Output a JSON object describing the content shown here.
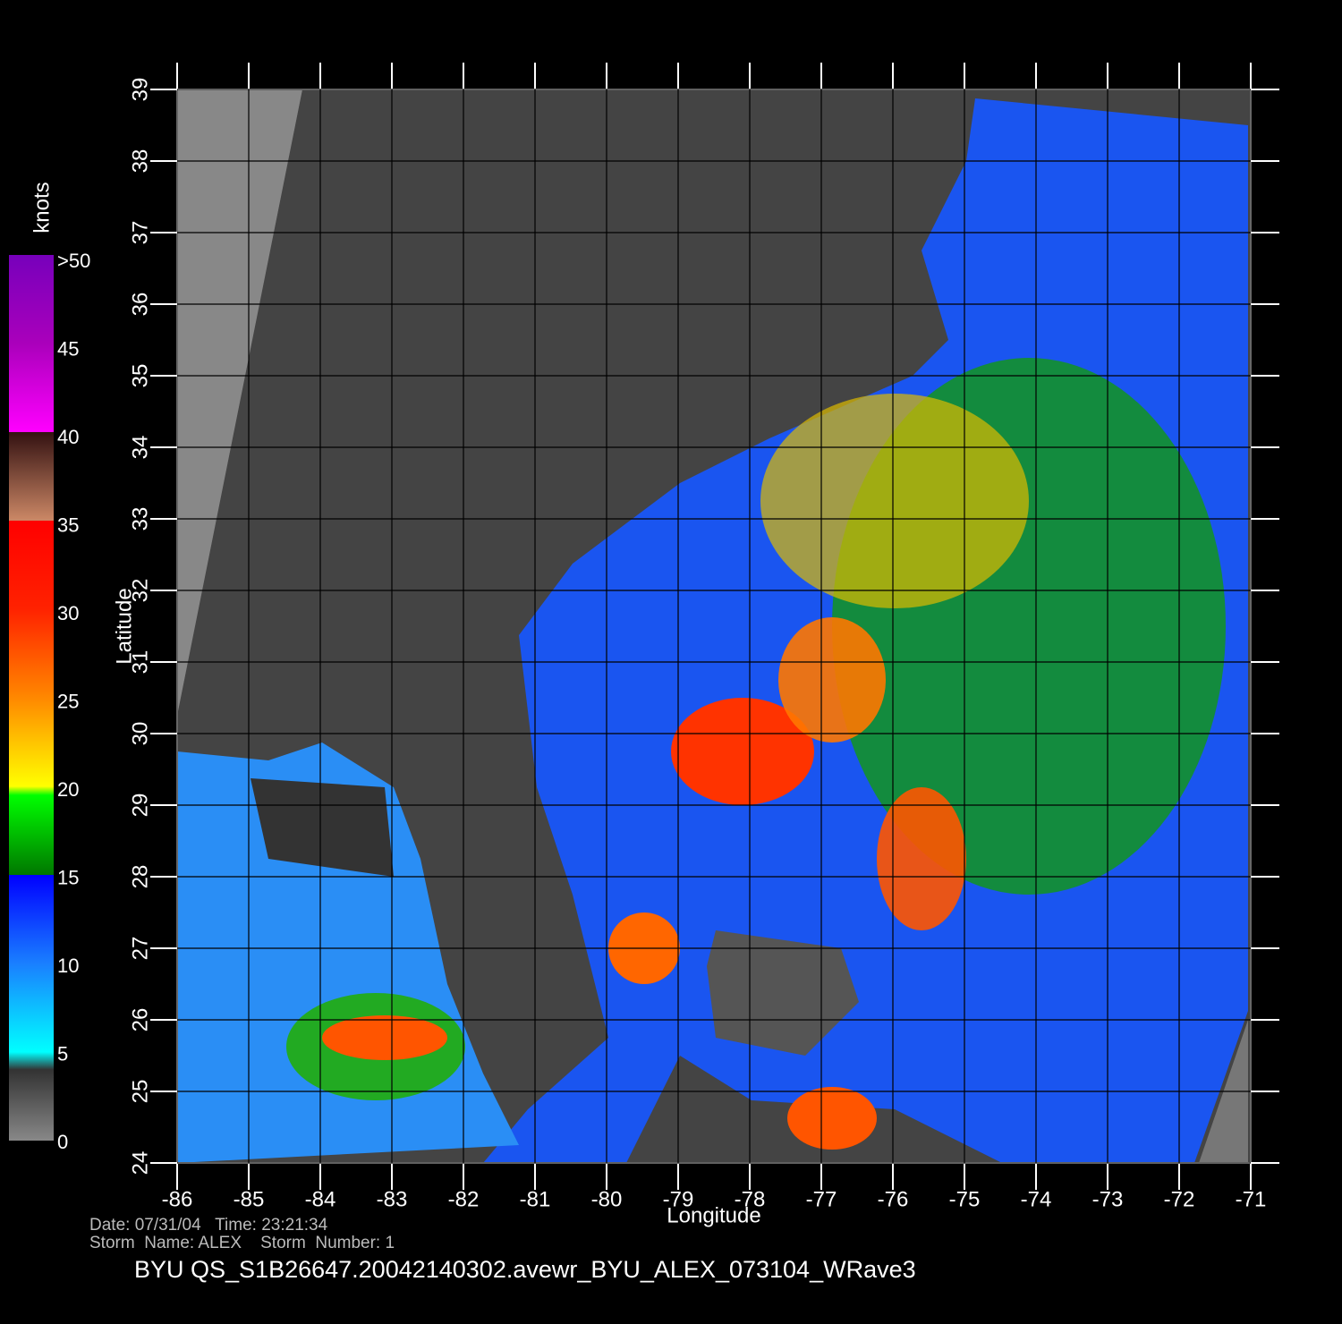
{
  "map": {
    "xlabel": "Longitude",
    "ylabel": "Latitude",
    "xlim": [
      -86,
      -71
    ],
    "ylim": [
      24,
      39
    ],
    "xticks": [
      -86,
      -85,
      -84,
      -83,
      -82,
      -81,
      -80,
      -79,
      -78,
      -77,
      -76,
      -75,
      -74,
      -73,
      -72,
      -71
    ],
    "yticks": [
      24,
      25,
      26,
      27,
      28,
      29,
      30,
      31,
      32,
      33,
      34,
      35,
      36,
      37,
      38,
      39
    ]
  },
  "colorbar": {
    "label": "knots",
    "lim": [
      0,
      50
    ],
    "ticks": [
      0,
      5,
      10,
      15,
      20,
      25,
      30,
      35,
      40,
      45,
      {
        "value": 50,
        "label": ">50"
      }
    ]
  },
  "footer": {
    "date_line": "Date: 07/31/04   Time: 23:21:34",
    "storm_line": "Storm  Name: ALEX    Storm  Number: 1",
    "title": "BYU  QS_S1B26647.20042140302.avewr_BYU_ALEX_073104_WRave3"
  }
}
